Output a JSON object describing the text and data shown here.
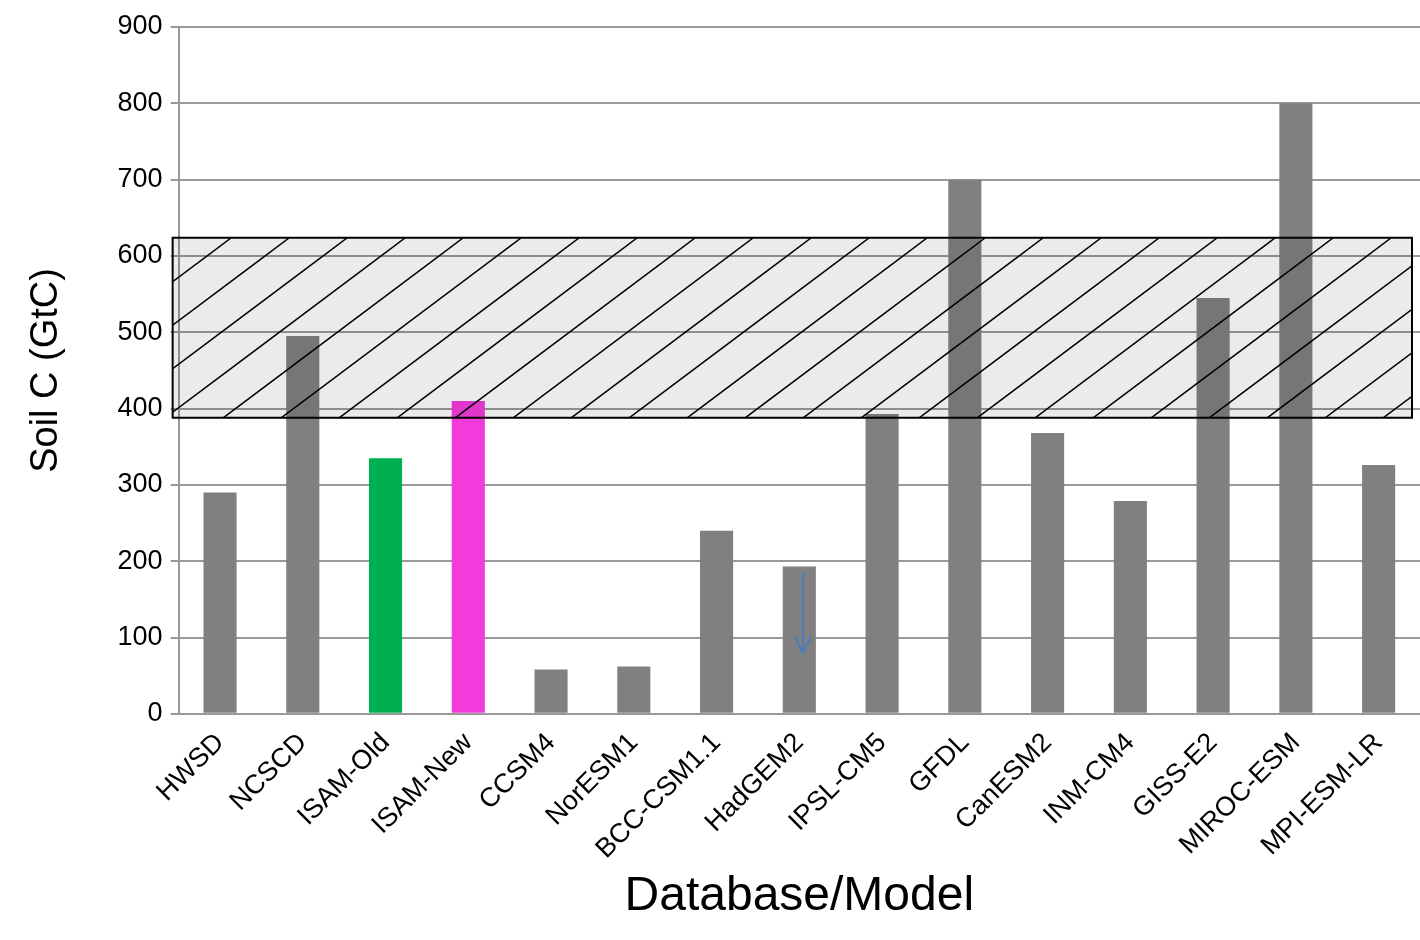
{
  "chart_data": {
    "type": "bar",
    "categories": [
      "HWSD",
      "NCSCD",
      "ISAM-Old",
      "ISAM-New",
      "CCSM4",
      "NorESM1",
      "BCC-CSM1.1",
      "HadGEM2",
      "IPSL-CM5",
      "GFDL",
      "CanESM2",
      "INM-CM4",
      "GISS-E2",
      "MIROC-ESM",
      "MPI-ESM-LR"
    ],
    "values": [
      290,
      495,
      335,
      410,
      58,
      62,
      240,
      193,
      393,
      700,
      368,
      279,
      545,
      800,
      326
    ],
    "colors": [
      "#808080",
      "#808080",
      "#00b050",
      "#f33bdc",
      "#808080",
      "#808080",
      "#808080",
      "#808080",
      "#808080",
      "#808080",
      "#808080",
      "#808080",
      "#808080",
      "#808080",
      "#808080"
    ],
    "ylim": [
      0,
      900
    ],
    "yticks": [
      0,
      100,
      200,
      300,
      400,
      500,
      600,
      700,
      800,
      900
    ],
    "xlabel": "Database/Model",
    "ylabel": "Soil C (GtC)",
    "bands": [
      {
        "axis": "y",
        "from": 388,
        "to": 624,
        "color": "#000000"
      }
    ],
    "grid": "y",
    "legend": false
  }
}
